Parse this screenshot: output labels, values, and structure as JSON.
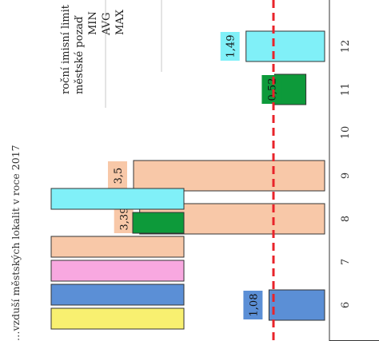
{
  "chart_data": {
    "type": "bar",
    "orientation": "rotated-90",
    "title": "…vzduší městských lokalit v roce 2017",
    "categories": [
      "6",
      "7",
      "8",
      "9",
      "10",
      "11",
      "12"
    ],
    "bars": [
      {
        "category": "6",
        "value": 1.08,
        "label": "1,08",
        "color": "#5b8fd6",
        "style": "solid"
      },
      {
        "category": "8",
        "value": 3.39,
        "label": "3,39",
        "color": "#f8c8a8",
        "style": "solid"
      },
      {
        "category": "9",
        "value": 3.5,
        "label": "3,5",
        "color": "#f8c8a8",
        "style": "solid"
      },
      {
        "category": "11",
        "value": 0.52,
        "label": "0,52",
        "color": "#0d9a3a",
        "style": "floating"
      },
      {
        "category": "12",
        "value": 1.49,
        "label": "1,49",
        "color": "#80f0f8",
        "style": "solid"
      }
    ],
    "reference_line": {
      "value": 1.0,
      "color": "#e8232a",
      "style": "dashed"
    },
    "legend": {
      "placement": "top-right",
      "lines": [
        "roční imisní limit",
        "městské pozaď",
        "MIN",
        "AVG",
        "MAX"
      ],
      "swatches": [
        "#f8f070",
        "#5b8fd6",
        "#f8a8e0",
        "#f8c8a8",
        "#0d9a3a",
        "#80f0f8"
      ]
    },
    "colors": {
      "text": "#333333",
      "bar_outline": "#333333",
      "grid": "#c8c8c8"
    }
  }
}
